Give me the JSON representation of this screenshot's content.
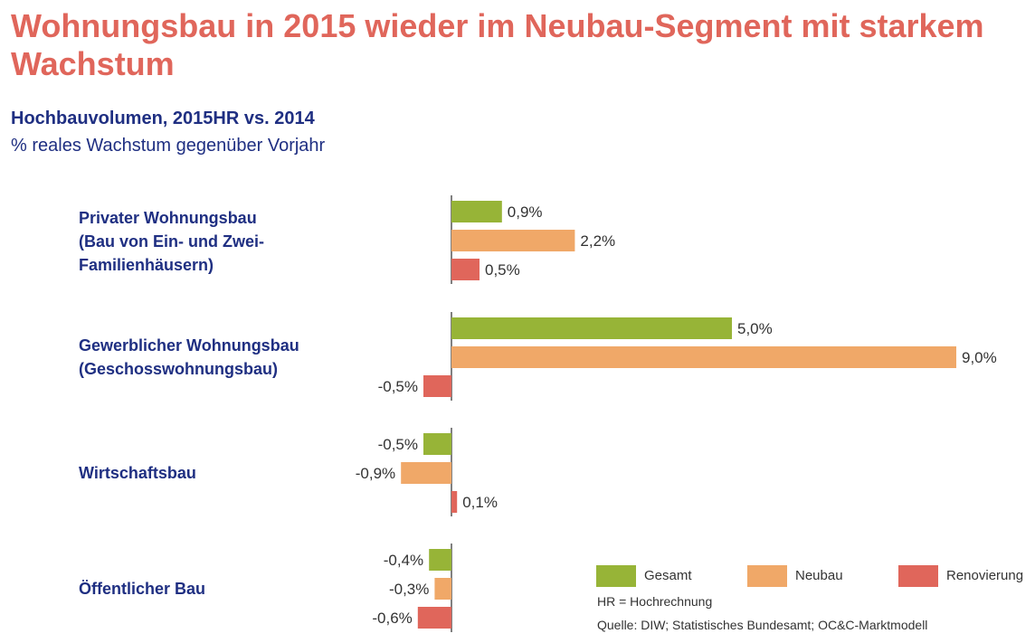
{
  "chart_data": {
    "type": "bar",
    "orientation": "horizontal",
    "title": "Wohnungsbau in 2015 wieder im Neubau-Segment mit starkem Wachstum",
    "subtitle": "Hochbauvolumen, 2015HR vs. 2014",
    "subtitle2": "% reales Wachstum gegenüber Vorjahr",
    "categories": [
      [
        "Privater Wohnungsbau",
        "(Bau von Ein- und Zwei-",
        "Familienhäusern)"
      ],
      [
        "Gewerblicher Wohnungsbau",
        "(Geschosswohnungsbau)"
      ],
      [
        "Wirtschaftsbau"
      ],
      [
        "Öffentlicher Bau"
      ]
    ],
    "series": [
      {
        "name": "Gesamt",
        "color": "#97b437",
        "values": [
          0.9,
          5.0,
          -0.5,
          -0.4
        ],
        "labels": [
          "0,9%",
          "5,0%",
          "-0,5%",
          "-0,4%"
        ]
      },
      {
        "name": "Neubau",
        "color": "#f0a868",
        "values": [
          2.2,
          9.0,
          -0.9,
          -0.3
        ],
        "labels": [
          "2,2%",
          "9,0%",
          "-0,9%",
          "-0,3%"
        ]
      },
      {
        "name": "Renovierung",
        "color": "#e0665b",
        "values": [
          0.5,
          -0.5,
          0.1,
          -0.6
        ],
        "labels": [
          "0,5%",
          "-0,5%",
          "0,1%",
          "-0,6%"
        ]
      }
    ],
    "legend_position": "bottom-right",
    "grid": false
  },
  "footnote_hr": "HR = Hochrechnung",
  "source": "Quelle: DIW; Statistisches Bundesamt; OC&C-Marktmodell"
}
